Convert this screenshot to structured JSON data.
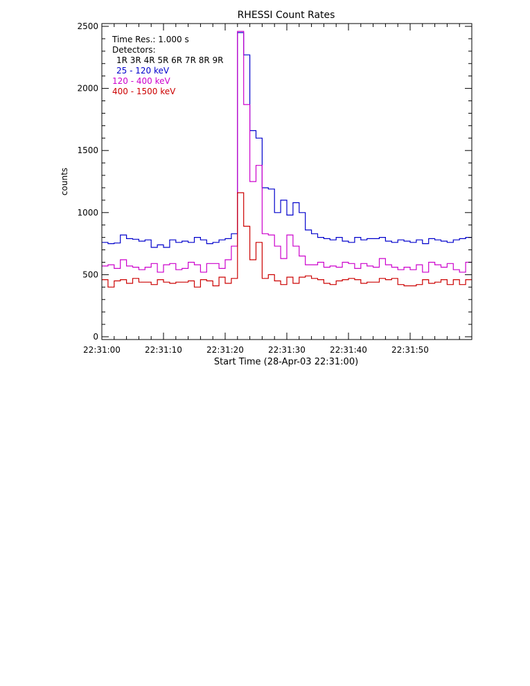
{
  "chart_data": {
    "type": "line",
    "title": "RHESSI Count Rates",
    "xlabel": "Start Time (28-Apr-03 22:31:00)",
    "ylabel": "counts",
    "xlim": [
      0,
      60
    ],
    "ylim": [
      0,
      2500
    ],
    "x_ticks": [
      {
        "value": 0,
        "label": "22:31:00"
      },
      {
        "value": 10,
        "label": "22:31:10"
      },
      {
        "value": 20,
        "label": "22:31:20"
      },
      {
        "value": 30,
        "label": "22:31:30"
      },
      {
        "value": 40,
        "label": "22:31:40"
      },
      {
        "value": 50,
        "label": "22:31:50"
      }
    ],
    "y_ticks": [
      {
        "value": 0,
        "label": "0"
      },
      {
        "value": 500,
        "label": "500"
      },
      {
        "value": 1000,
        "label": "1000"
      },
      {
        "value": 1500,
        "label": "1500"
      },
      {
        "value": 2000,
        "label": "2000"
      },
      {
        "value": 2500,
        "label": "2500"
      }
    ],
    "annotations": {
      "time_res": "Time Res.: 1.000 s",
      "detectors_label": "Detectors:",
      "detectors_list": "1R 3R 4R 5R 6R 7R 8R 9R"
    },
    "grid": false,
    "legend_position": "top-left",
    "series": [
      {
        "name": "25 - 120 keV",
        "color": "#0000cc",
        "values": [
          760,
          750,
          755,
          820,
          790,
          785,
          770,
          780,
          720,
          740,
          720,
          780,
          760,
          770,
          760,
          800,
          780,
          750,
          760,
          780,
          790,
          830,
          2450,
          2270,
          1660,
          1600,
          1200,
          1190,
          1000,
          1100,
          980,
          1080,
          1000,
          860,
          830,
          800,
          790,
          780,
          800,
          770,
          760,
          800,
          780,
          790,
          790,
          800,
          770,
          760,
          780,
          770,
          760,
          780,
          750,
          790,
          780,
          770,
          760,
          780,
          790,
          800
        ]
      },
      {
        "name": "120 - 400 keV",
        "color": "#cc00cc",
        "values": [
          570,
          580,
          550,
          620,
          570,
          560,
          540,
          560,
          590,
          520,
          580,
          590,
          540,
          550,
          600,
          580,
          520,
          590,
          590,
          550,
          620,
          730,
          2460,
          1870,
          1250,
          1380,
          830,
          820,
          730,
          630,
          820,
          730,
          650,
          580,
          580,
          600,
          560,
          570,
          560,
          600,
          590,
          550,
          590,
          570,
          560,
          630,
          580,
          560,
          540,
          560,
          540,
          580,
          520,
          600,
          580,
          560,
          590,
          540,
          520,
          600
        ]
      },
      {
        "name": "400 - 1500 keV",
        "color": "#cc0000",
        "values": [
          460,
          400,
          450,
          460,
          430,
          470,
          440,
          440,
          420,
          460,
          440,
          430,
          440,
          440,
          450,
          400,
          460,
          450,
          410,
          480,
          430,
          470,
          1160,
          890,
          620,
          760,
          470,
          500,
          450,
          420,
          480,
          430,
          480,
          490,
          470,
          460,
          430,
          420,
          450,
          460,
          470,
          460,
          430,
          440,
          440,
          470,
          460,
          470,
          420,
          410,
          410,
          420,
          460,
          430,
          440,
          460,
          420,
          460,
          420,
          460
        ]
      }
    ]
  }
}
